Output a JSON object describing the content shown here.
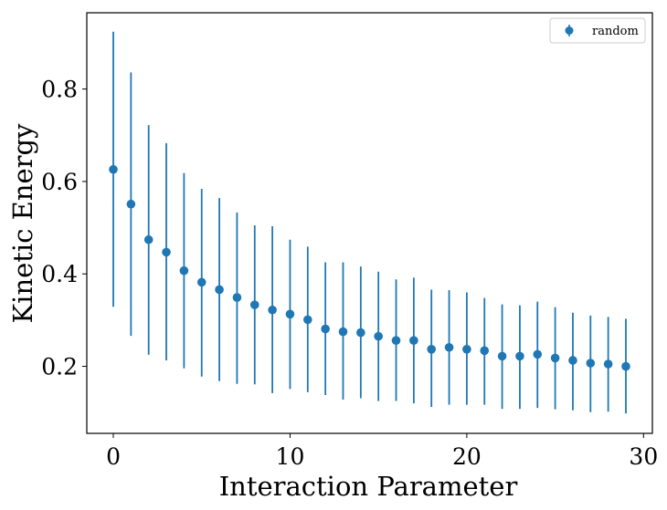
{
  "chart_data": {
    "type": "scatter",
    "title": "",
    "xlabel": "Interaction Parameter",
    "ylabel": "Kinetic Energy",
    "xlim": [
      -1.5,
      30.5
    ],
    "ylim": [
      0.055,
      0.965
    ],
    "xticks": [
      0,
      10,
      20,
      30
    ],
    "xtick_labels": [
      "0",
      "10",
      "20",
      "30"
    ],
    "yticks": [
      0.2,
      0.4,
      0.6,
      0.8
    ],
    "ytick_labels": [
      "0.2",
      "0.4",
      "0.6",
      "0.8"
    ],
    "grid": false,
    "legend_position": "top-right",
    "series": [
      {
        "name": "random",
        "color": "#1f77b4",
        "marker": "circle",
        "x": [
          0,
          1,
          2,
          3,
          4,
          5,
          6,
          7,
          8,
          9,
          10,
          11,
          12,
          13,
          14,
          15,
          16,
          17,
          18,
          19,
          20,
          21,
          22,
          23,
          24,
          25,
          26,
          27,
          28,
          29
        ],
        "y": [
          0.626,
          0.551,
          0.474,
          0.447,
          0.407,
          0.382,
          0.366,
          0.349,
          0.333,
          0.322,
          0.313,
          0.301,
          0.281,
          0.275,
          0.273,
          0.265,
          0.256,
          0.256,
          0.237,
          0.241,
          0.237,
          0.234,
          0.222,
          0.222,
          0.226,
          0.218,
          0.213,
          0.207,
          0.205,
          0.2
        ],
        "yerr_low": [
          0.329,
          0.266,
          0.225,
          0.213,
          0.196,
          0.178,
          0.168,
          0.162,
          0.161,
          0.142,
          0.151,
          0.144,
          0.138,
          0.128,
          0.131,
          0.125,
          0.125,
          0.12,
          0.112,
          0.117,
          0.117,
          0.117,
          0.108,
          0.108,
          0.11,
          0.107,
          0.105,
          0.101,
          0.102,
          0.098
        ],
        "yerr_high": [
          0.924,
          0.836,
          0.722,
          0.683,
          0.618,
          0.584,
          0.564,
          0.533,
          0.505,
          0.503,
          0.474,
          0.459,
          0.425,
          0.425,
          0.416,
          0.405,
          0.388,
          0.392,
          0.366,
          0.365,
          0.36,
          0.348,
          0.334,
          0.332,
          0.34,
          0.328,
          0.316,
          0.31,
          0.307,
          0.303
        ]
      }
    ]
  }
}
